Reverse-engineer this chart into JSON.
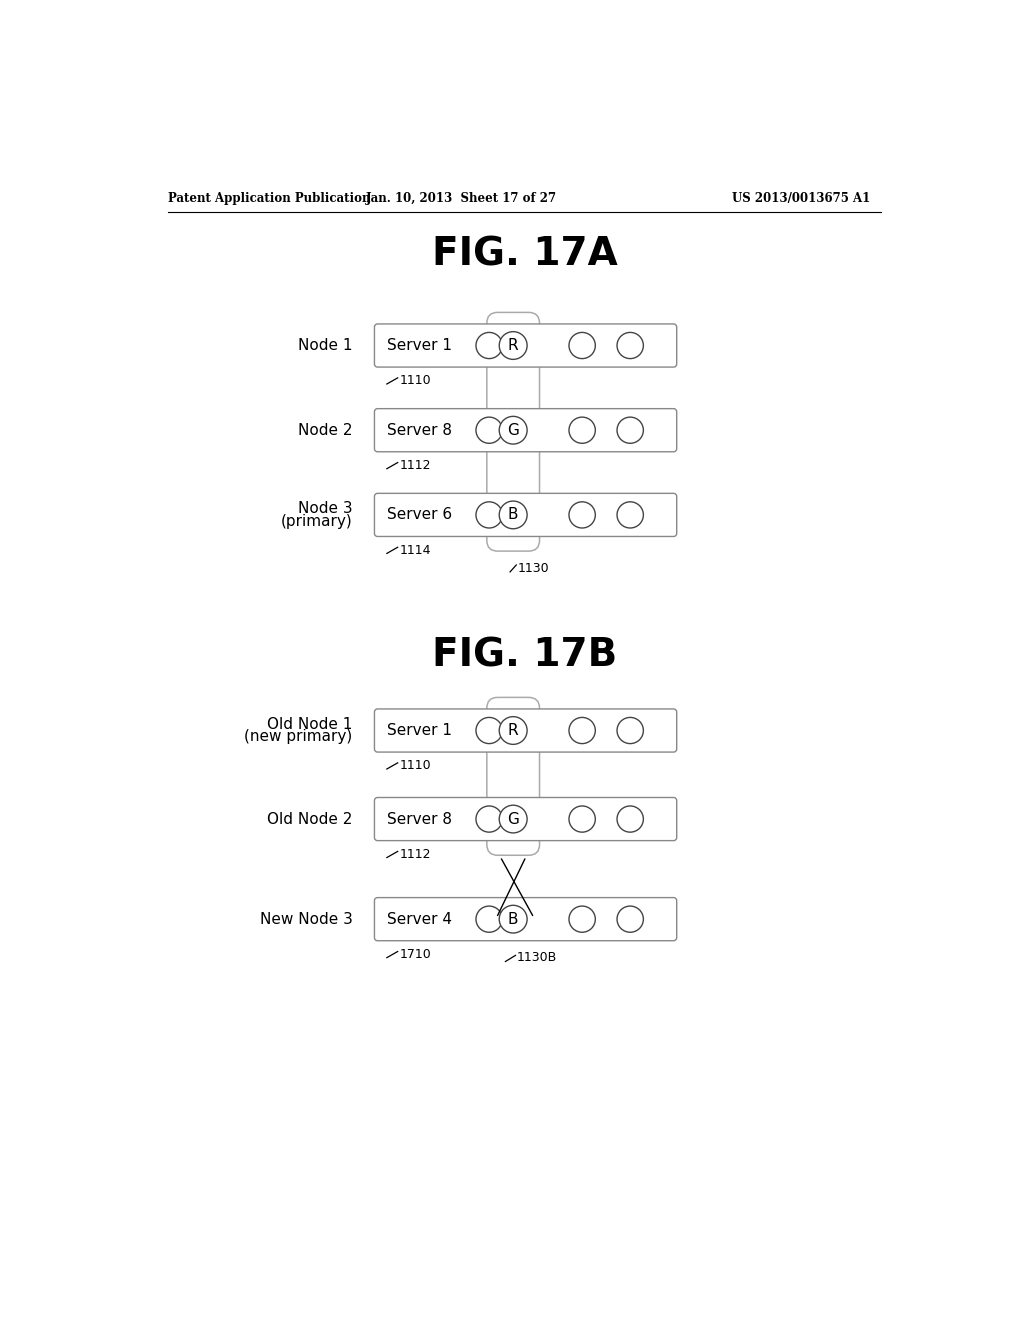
{
  "bg_color": "#ffffff",
  "header_left": "Patent Application Publication",
  "header_mid": "Jan. 10, 2013  Sheet 17 of 27",
  "header_right": "US 2013/0013675 A1",
  "fig17a_title": "FIG. 17A",
  "fig17b_title": "FIG. 17B",
  "fig17a_nodes": [
    {
      "label": "Node 1",
      "label2": "",
      "server": "Server 1",
      "circle_label": "R",
      "ref": "1110"
    },
    {
      "label": "Node 2",
      "label2": "",
      "server": "Server 8",
      "circle_label": "G",
      "ref": "1112"
    },
    {
      "label": "Node 3",
      "label2": "(primary)",
      "server": "Server 6",
      "circle_label": "B",
      "ref": "1114"
    }
  ],
  "fig17a_column_ref": "1130",
  "fig17b_nodes": [
    {
      "label": "Old Node 1",
      "label2": "(new primary)",
      "server": "Server 1",
      "circle_label": "R",
      "ref": "1110"
    },
    {
      "label": "Old Node 2",
      "label2": "",
      "server": "Server 8",
      "circle_label": "G",
      "ref": "1112"
    },
    {
      "label": "New Node 3",
      "label2": "",
      "server": "Server 4",
      "circle_label": "B",
      "ref": "1710"
    }
  ],
  "fig17b_column_ref": "1130B"
}
